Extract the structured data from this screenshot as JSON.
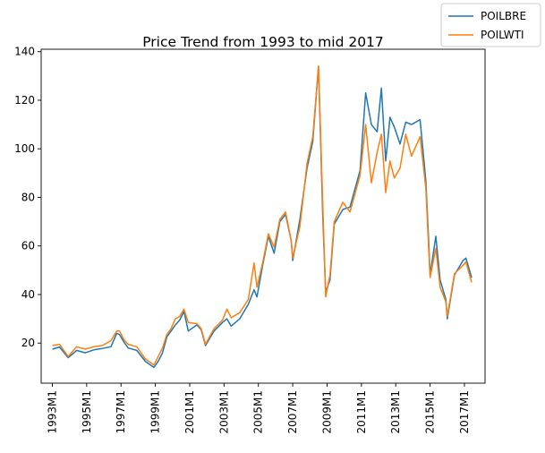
{
  "chart_data": {
    "type": "line",
    "title": "Price Trend from 1993 to mid 2017",
    "xlabel": "",
    "ylabel": "",
    "x_range": [
      "1993M1",
      "2017M6"
    ],
    "xlim_years": [
      1992.35,
      2018.2
    ],
    "ylim": [
      3.5,
      141
    ],
    "yticks": [
      20,
      40,
      60,
      80,
      100,
      120,
      140
    ],
    "xticks": [
      "1993M1",
      "1995M1",
      "1997M1",
      "1999M1",
      "2001M1",
      "2003M1",
      "2005M1",
      "2007M1",
      "2009M1",
      "2011M1",
      "2013M1",
      "2015M1",
      "2017M1"
    ],
    "grid": false,
    "legend_position": "top-right",
    "series": [
      {
        "name": "POILBRE",
        "color": "#1f77b4",
        "points": [
          [
            "1993M1",
            17.5
          ],
          [
            "1993M6",
            18.4
          ],
          [
            "1993M12",
            14.0
          ],
          [
            "1994M6",
            17.0
          ],
          [
            "1994M12",
            16.0
          ],
          [
            "1995M6",
            17.2
          ],
          [
            "1995M12",
            17.8
          ],
          [
            "1996M6",
            18.5
          ],
          [
            "1996M10",
            24.0
          ],
          [
            "1996M12",
            23.5
          ],
          [
            "1997M3",
            20.5
          ],
          [
            "1997M6",
            18.0
          ],
          [
            "1997M12",
            17.0
          ],
          [
            "1998M6",
            12.5
          ],
          [
            "1998M12",
            10.0
          ],
          [
            "1999M3",
            12.5
          ],
          [
            "1999M6",
            16.0
          ],
          [
            "1999M9",
            22.5
          ],
          [
            "1999M12",
            25.0
          ],
          [
            "2000M3",
            27.5
          ],
          [
            "2000M6",
            29.5
          ],
          [
            "2000M9",
            33.0
          ],
          [
            "2000M12",
            25.0
          ],
          [
            "2001M6",
            27.5
          ],
          [
            "2001M9",
            25.5
          ],
          [
            "2001M12",
            19.0
          ],
          [
            "2002M6",
            25.0
          ],
          [
            "2002M12",
            28.5
          ],
          [
            "2003M3",
            30.0
          ],
          [
            "2003M6",
            27.0
          ],
          [
            "2003M12",
            30.0
          ],
          [
            "2004M6",
            36.0
          ],
          [
            "2004M10",
            42.0
          ],
          [
            "2004M12",
            39.0
          ],
          [
            "2005M4",
            52.0
          ],
          [
            "2005M8",
            64.0
          ],
          [
            "2005M12",
            57.0
          ],
          [
            "2006M4",
            70.0
          ],
          [
            "2006M8",
            73.0
          ],
          [
            "2006M12",
            62.0
          ],
          [
            "2007M1",
            54.0
          ],
          [
            "2007M6",
            71.0
          ],
          [
            "2007M11",
            92.0
          ],
          [
            "2008M3",
            103.0
          ],
          [
            "2008M7",
            134.0
          ],
          [
            "2008M10",
            72.0
          ],
          [
            "2008M12",
            41.0
          ],
          [
            "2009M3",
            46.0
          ],
          [
            "2009M6",
            69.0
          ],
          [
            "2009M12",
            75.0
          ],
          [
            "2010M5",
            76.0
          ],
          [
            "2010M12",
            91.0
          ],
          [
            "2011M4",
            123.0
          ],
          [
            "2011M8",
            110.0
          ],
          [
            "2011M12",
            107.0
          ],
          [
            "2012M3",
            125.0
          ],
          [
            "2012M6",
            95.0
          ],
          [
            "2012M9",
            113.0
          ],
          [
            "2012M12",
            109.0
          ],
          [
            "2013M4",
            102.0
          ],
          [
            "2013M8",
            111.0
          ],
          [
            "2013M12",
            110.0
          ],
          [
            "2014M6",
            112.0
          ],
          [
            "2014M10",
            87.0
          ],
          [
            "2014M12",
            62.0
          ],
          [
            "2015M1",
            48.0
          ],
          [
            "2015M5",
            64.0
          ],
          [
            "2015M8",
            46.0
          ],
          [
            "2015M12",
            38.0
          ],
          [
            "2016M1",
            30.0
          ],
          [
            "2016M6",
            48.0
          ],
          [
            "2016M12",
            54.0
          ],
          [
            "2017M2",
            55.0
          ],
          [
            "2017M6",
            47.0
          ]
        ]
      },
      {
        "name": "POILWTI",
        "color": "#ff7f0e",
        "points": [
          [
            "1993M1",
            19.0
          ],
          [
            "1993M6",
            19.5
          ],
          [
            "1993M12",
            14.5
          ],
          [
            "1994M6",
            18.5
          ],
          [
            "1994M12",
            17.5
          ],
          [
            "1995M6",
            18.5
          ],
          [
            "1995M12",
            19.0
          ],
          [
            "1996M6",
            21.0
          ],
          [
            "1996M10",
            25.0
          ],
          [
            "1996M12",
            25.0
          ],
          [
            "1997M3",
            21.5
          ],
          [
            "1997M6",
            19.5
          ],
          [
            "1997M12",
            18.5
          ],
          [
            "1998M6",
            13.5
          ],
          [
            "1998M12",
            11.0
          ],
          [
            "1999M3",
            14.5
          ],
          [
            "1999M6",
            18.0
          ],
          [
            "1999M9",
            23.5
          ],
          [
            "1999M12",
            26.0
          ],
          [
            "2000M3",
            30.0
          ],
          [
            "2000M6",
            31.0
          ],
          [
            "2000M9",
            34.0
          ],
          [
            "2000M12",
            28.5
          ],
          [
            "2001M6",
            28.0
          ],
          [
            "2001M9",
            26.0
          ],
          [
            "2001M12",
            19.5
          ],
          [
            "2002M6",
            26.0
          ],
          [
            "2002M12",
            29.5
          ],
          [
            "2003M3",
            34.0
          ],
          [
            "2003M6",
            30.5
          ],
          [
            "2003M12",
            32.5
          ],
          [
            "2004M6",
            38.0
          ],
          [
            "2004M10",
            53.0
          ],
          [
            "2004M12",
            43.0
          ],
          [
            "2005M4",
            53.0
          ],
          [
            "2005M8",
            65.0
          ],
          [
            "2005M12",
            59.5
          ],
          [
            "2006M4",
            71.0
          ],
          [
            "2006M8",
            74.0
          ],
          [
            "2006M12",
            62.0
          ],
          [
            "2007M1",
            55.0
          ],
          [
            "2007M6",
            68.0
          ],
          [
            "2007M11",
            94.0
          ],
          [
            "2008M3",
            105.0
          ],
          [
            "2008M7",
            134.0
          ],
          [
            "2008M10",
            77.0
          ],
          [
            "2008M12",
            39.0
          ],
          [
            "2009M3",
            48.0
          ],
          [
            "2009M6",
            70.0
          ],
          [
            "2009M12",
            78.0
          ],
          [
            "2010M5",
            74.0
          ],
          [
            "2010M12",
            89.0
          ],
          [
            "2011M4",
            110.0
          ],
          [
            "2011M8",
            86.0
          ],
          [
            "2011M12",
            98.5
          ],
          [
            "2012M3",
            106.0
          ],
          [
            "2012M6",
            82.0
          ],
          [
            "2012M9",
            95.0
          ],
          [
            "2012M12",
            88.0
          ],
          [
            "2013M4",
            92.0
          ],
          [
            "2013M8",
            106.0
          ],
          [
            "2013M12",
            97.0
          ],
          [
            "2014M6",
            105.0
          ],
          [
            "2014M10",
            84.0
          ],
          [
            "2014M12",
            59.0
          ],
          [
            "2015M1",
            47.0
          ],
          [
            "2015M5",
            59.0
          ],
          [
            "2015M8",
            43.0
          ],
          [
            "2015M12",
            37.0
          ],
          [
            "2016M1",
            31.0
          ],
          [
            "2016M6",
            48.5
          ],
          [
            "2016M12",
            52.0
          ],
          [
            "2017M2",
            53.5
          ],
          [
            "2017M6",
            45.0
          ]
        ]
      }
    ]
  }
}
